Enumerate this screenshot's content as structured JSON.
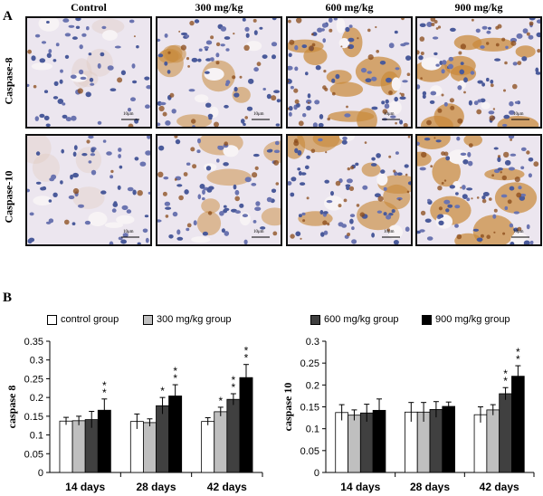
{
  "panel_a": {
    "letter": "A",
    "columns": [
      "Control",
      "300 mg/kg",
      "600 mg/kg",
      "900 mg/kg"
    ],
    "rows": [
      "Caspase-8",
      "Caspase-10"
    ],
    "scale_label": "10μm"
  },
  "panel_b": {
    "letter": "B"
  },
  "legend": [
    {
      "label": "control group",
      "color": "#ffffff"
    },
    {
      "label": "300 mg/kg group",
      "color": "#bfbfbf"
    },
    {
      "label": "600 mg/kg group",
      "color": "#404040"
    },
    {
      "label": "900 mg/kg group",
      "color": "#000000"
    }
  ],
  "chart_data": [
    {
      "type": "bar",
      "categories": [
        "14 days",
        "28 days",
        "42 days"
      ],
      "ylabel": "caspase 8",
      "ylim": [
        0,
        0.35
      ],
      "yticks": [
        "0",
        "0.05",
        "0.1",
        "0.15",
        "0.2",
        "0.25",
        "0.3",
        "0.35"
      ],
      "series": [
        {
          "name": "control group",
          "values": [
            0.137,
            0.136,
            0.136
          ],
          "errors": [
            0.01,
            0.02,
            0.01
          ],
          "color": "#ffffff"
        },
        {
          "name": "300 mg/kg group",
          "values": [
            0.138,
            0.133,
            0.162
          ],
          "errors": [
            0.012,
            0.01,
            0.012
          ],
          "color": "#bfbfbf"
        },
        {
          "name": "600 mg/kg group",
          "values": [
            0.141,
            0.178,
            0.195
          ],
          "errors": [
            0.022,
            0.022,
            0.015
          ],
          "color": "#404040"
        },
        {
          "name": "900 mg/kg group",
          "values": [
            0.166,
            0.204,
            0.253
          ],
          "errors": [
            0.03,
            0.03,
            0.035
          ],
          "color": "#000000"
        }
      ],
      "annotations": [
        {
          "category": "14 days",
          "series": 3,
          "text": "**"
        },
        {
          "category": "28 days",
          "series": 2,
          "text": "*"
        },
        {
          "category": "28 days",
          "series": 3,
          "text": "**"
        },
        {
          "category": "42 days",
          "series": 1,
          "text": "*"
        },
        {
          "category": "42 days",
          "series": 2,
          "text": "**"
        },
        {
          "category": "42 days",
          "series": 3,
          "text": "**"
        }
      ]
    },
    {
      "type": "bar",
      "categories": [
        "14 days",
        "28 days",
        "42 days"
      ],
      "ylabel": "caspase 10",
      "ylim": [
        0,
        0.3
      ],
      "yticks": [
        "0",
        "0.05",
        "0.1",
        "0.15",
        "0.2",
        "0.25",
        "0.3"
      ],
      "series": [
        {
          "name": "control group",
          "values": [
            0.137,
            0.138,
            0.132
          ],
          "errors": [
            0.018,
            0.022,
            0.018
          ],
          "color": "#ffffff"
        },
        {
          "name": "300 mg/kg group",
          "values": [
            0.131,
            0.138,
            0.143
          ],
          "errors": [
            0.012,
            0.022,
            0.012
          ],
          "color": "#bfbfbf"
        },
        {
          "name": "600 mg/kg group",
          "values": [
            0.136,
            0.144,
            0.18
          ],
          "errors": [
            0.02,
            0.018,
            0.014
          ],
          "color": "#404040"
        },
        {
          "name": "900 mg/kg group",
          "values": [
            0.142,
            0.151,
            0.22
          ],
          "errors": [
            0.026,
            0.01,
            0.024
          ],
          "color": "#000000"
        }
      ],
      "annotations": [
        {
          "category": "42 days",
          "series": 2,
          "text": "**"
        },
        {
          "category": "42 days",
          "series": 3,
          "text": "**"
        }
      ]
    }
  ]
}
